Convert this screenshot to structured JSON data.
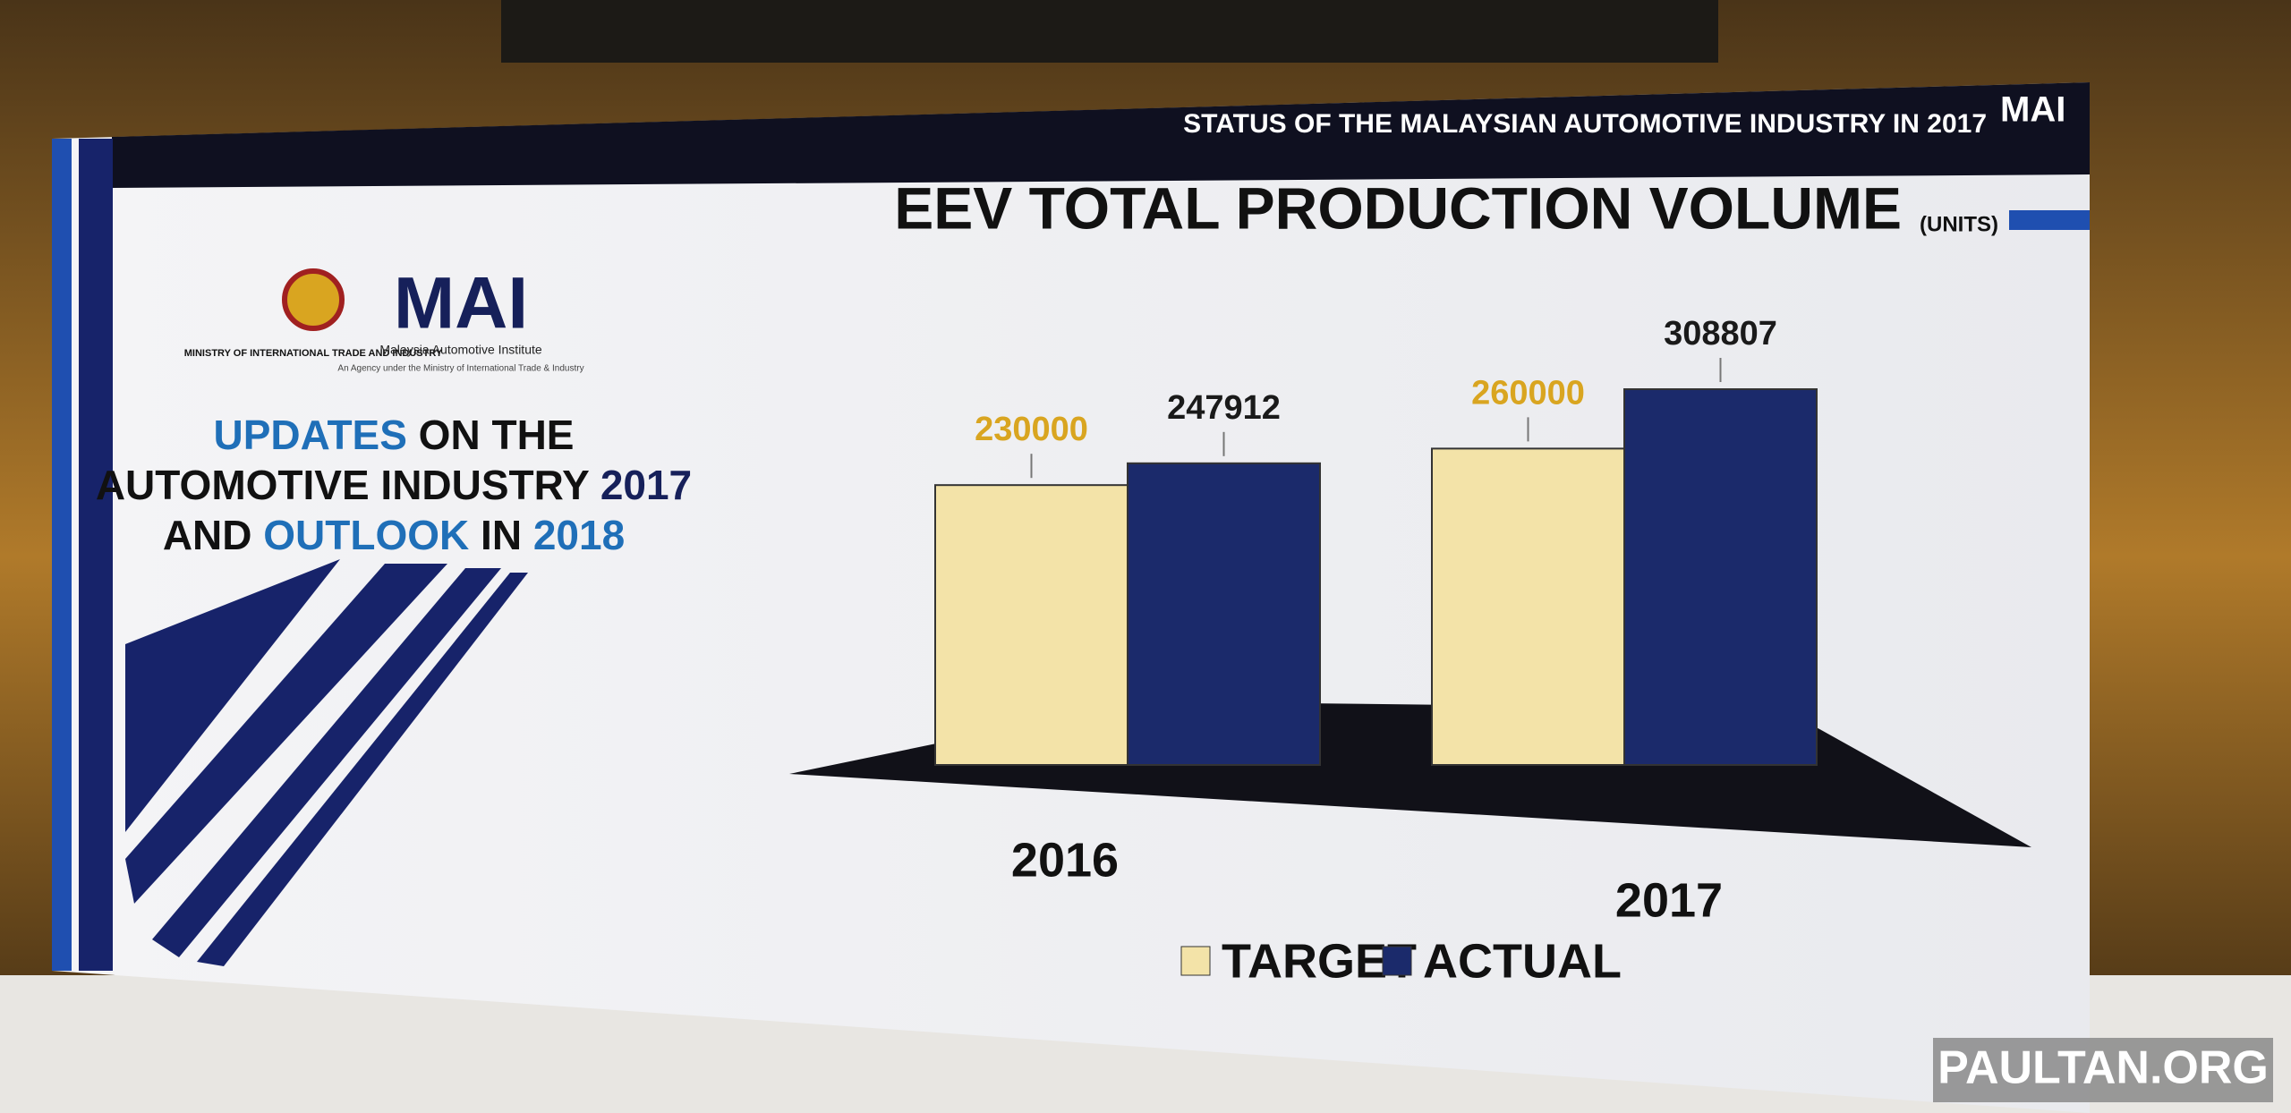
{
  "header": {
    "text": "STATUS OF THE MALAYSIAN AUTOMOTIVE INDUSTRY IN 2017",
    "logo": "MAI"
  },
  "logos": {
    "ministry": "MINISTRY OF INTERNATIONAL TRADE AND INDUSTRY",
    "mai": "MAI",
    "mai_name": "Malaysia Automotive Institute",
    "mai_tagline": "An Agency under the Ministry of International Trade & Industry"
  },
  "slide_title": {
    "lines": [
      [
        "UPDATES",
        " ON THE"
      ],
      [
        "AUTOMOTIVE INDUSTRY ",
        "2017"
      ],
      [
        "AND ",
        "OUTLOOK",
        " IN ",
        "2018"
      ]
    ]
  },
  "watermark": "PAULTAN.ORG",
  "chart_data": {
    "type": "bar",
    "title": "EEV TOTAL PRODUCTION VOLUME",
    "unit": "(UNITS)",
    "categories": [
      "2016",
      "2017"
    ],
    "series": [
      {
        "name": "TARGET",
        "color": "#f3e3a8",
        "label_color": "#d9a520",
        "values": [
          230000,
          260000
        ]
      },
      {
        "name": "ACTUAL",
        "color": "#1b2a6b",
        "label_color": "#1a1a1a",
        "values": [
          247912,
          308807
        ]
      }
    ]
  }
}
